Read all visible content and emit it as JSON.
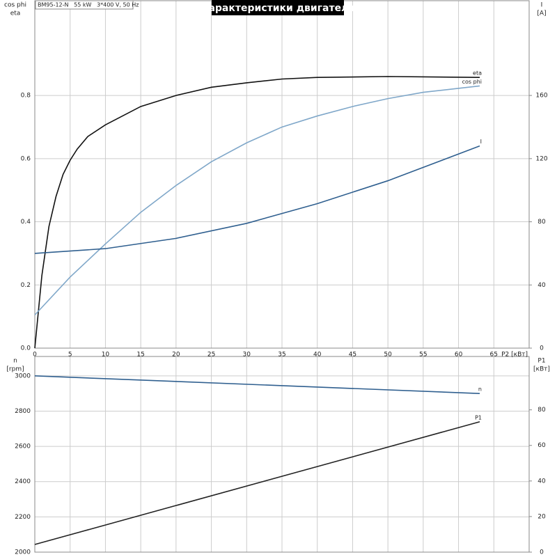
{
  "chart_data": [
    {
      "type": "line",
      "title": "Характеристики двигателя",
      "subtitle": "BM95-12-N   55 kW   3*400 V, 50 Hz",
      "y_label": [
        "cos phi",
        "eta"
      ],
      "y2_label": [
        "I",
        "[A]"
      ],
      "x_label": "P2 [кВт]",
      "xlim": [
        0,
        70
      ],
      "xticks": [
        0,
        5,
        10,
        15,
        20,
        25,
        30,
        35,
        40,
        45,
        50,
        55,
        60,
        65
      ],
      "ylim": [
        0,
        1.1
      ],
      "yticks": [
        {
          "value": 0,
          "label": "0.0"
        },
        0.2,
        0.4,
        0.6,
        0.8
      ],
      "y2lim": [
        0,
        220
      ],
      "y2ticks": [
        0,
        40,
        80,
        120,
        160
      ],
      "grid": true,
      "series": [
        {
          "name": "eta",
          "color": "#111111",
          "x": [
            0,
            1,
            2,
            3,
            4,
            5,
            6,
            7.5,
            10,
            15,
            20,
            25,
            30,
            35,
            40,
            50,
            63
          ],
          "values": [
            0,
            0.23,
            0.385,
            0.48,
            0.55,
            0.595,
            0.63,
            0.67,
            0.707,
            0.765,
            0.8,
            0.826,
            0.84,
            0.852,
            0.857,
            0.86,
            0.857
          ]
        },
        {
          "name": "cos phi",
          "color": "#7fa7c9",
          "x": [
            0,
            5,
            10,
            15,
            20,
            25,
            30,
            35,
            40,
            45,
            50,
            55,
            63
          ],
          "values": [
            0.105,
            0.225,
            0.33,
            0.43,
            0.515,
            0.59,
            0.65,
            0.7,
            0.735,
            0.765,
            0.79,
            0.81,
            0.83
          ]
        },
        {
          "name": "I",
          "color": "#2f5f8f",
          "axis": "y2",
          "x": [
            0,
            10,
            20,
            30,
            40,
            50,
            63
          ],
          "values": [
            60,
            63,
            69.5,
            79,
            91.5,
            106,
            128
          ]
        }
      ]
    },
    {
      "type": "line",
      "y_label": [
        "n",
        "[rpm]"
      ],
      "y2_label": [
        "P1",
        "[кВт]"
      ],
      "xlim": [
        0,
        70
      ],
      "xticks": [
        0,
        5,
        10,
        15,
        20,
        25,
        30,
        35,
        40,
        45,
        50,
        55,
        60,
        65
      ],
      "ylim": [
        2000,
        3110
      ],
      "yticks": [
        2000,
        2200,
        2400,
        2600,
        2800,
        3000
      ],
      "y2lim": [
        0,
        110
      ],
      "y2ticks": [
        0,
        20,
        40,
        60,
        80
      ],
      "grid": true,
      "series": [
        {
          "name": "n",
          "color": "#2f5f8f",
          "x": [
            0,
            63
          ],
          "values": [
            3000,
            2900
          ]
        },
        {
          "name": "P1",
          "color": "#222222",
          "axis": "y2",
          "x": [
            0,
            63
          ],
          "values": [
            4.3,
            73.3
          ]
        }
      ]
    }
  ]
}
